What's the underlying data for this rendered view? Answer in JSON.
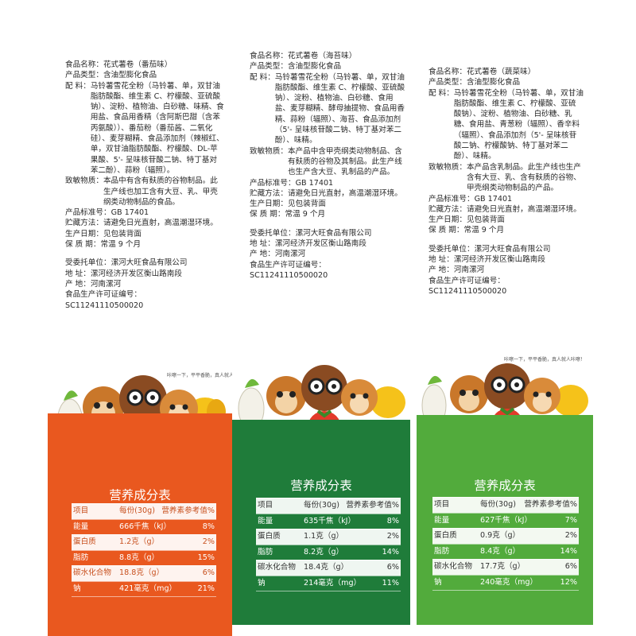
{
  "products": [
    {
      "name_label": "食品名称：",
      "name": "花式薯卷（番茄味）",
      "type_label": "产品类型：",
      "type": "含油型膨化食品",
      "ingredients_label": "配    料：",
      "ingredients": "马铃薯雪花全粉（马铃薯、单，双甘油脂肪酸酯、维生素 C、柠檬酸、亚硫酸钠）、淀粉、植物油、白砂糖、味精、食用盐、食品用香精（含阿斯巴甜（含苯丙氨酸））、番茄粉（番茄酱、二氧化硅）、麦芽糊精、食品添加剂（辣椒红、单，双甘油脂肪酸酯、柠檬酸、DL-苹果酸、5'- 呈味核苷酸二钠、特丁基对苯二酚）、蒜粉（辐照）。",
      "allergen_label": "致敏物质：",
      "allergen": "本品中有含有麸质的谷物制品。此生产线也加工含有大豆、乳、甲壳纲类动物制品的食品。",
      "standard_label": "产品标准号：",
      "standard": "GB 17401",
      "storage_label": "贮藏方法：",
      "storage": "请避免日光直射，高温潮湿环境。",
      "date_label": "生产日期：",
      "date": "见包装背面",
      "shelf_label": "保 质 期：",
      "shelf": "常温 9 个月",
      "entrust_label": "受委托单位：",
      "entrust": "漯河大旺食品有限公司",
      "address_label": "地    址：",
      "address": "漯河经济开发区衡山路南段",
      "origin_label": "产    地：",
      "origin": "河南漯河",
      "license_label": "食品生产许可证编号：",
      "license": "SC11241110500020",
      "slogan": "咔嚓一下，平平香脆，真人就人咔嚓！",
      "nutrition_title": "营养成分表",
      "nutrition_header": [
        "项目",
        "每份(30g)",
        "营养素参考值%"
      ],
      "nutrition_rows": [
        [
          "能量",
          "666千焦（kJ）",
          "8%"
        ],
        [
          "蛋白质",
          "1.2克（g）",
          "2%"
        ],
        [
          "脂肪",
          "8.8克（g）",
          "15%"
        ],
        [
          "碳水化合物",
          "18.8克（g）",
          "6%"
        ],
        [
          "钠",
          "421毫克（mg）",
          "21%"
        ]
      ],
      "theme_color": "#e9581f"
    },
    {
      "name_label": "食品名称：",
      "name": "花式薯卷（海苔味）",
      "type_label": "产品类型：",
      "type": "含油型膨化食品",
      "ingredients_label": "配    料：",
      "ingredients": "马铃薯雪花全粉（马铃薯、单，双甘油脂肪酸酯、维生素 C、柠檬酸、亚硫酸钠）、淀粉、植物油、白砂糖、食用盐、麦芽糊精、酵母抽提物、食品用香精、蒜粉（辐照）、海苔、食品添加剂（5'- 呈味核苷酸二钠、特丁基对苯二酚）、味精。",
      "allergen_label": "致敏物质：",
      "allergen": "本产品中含甲壳纲类动物制品、含有麸质的谷物及其制品。此生产线也生产含大豆、乳制品的产品。",
      "standard_label": "产品标准号：",
      "standard": "GB 17401",
      "storage_label": "贮藏方法：",
      "storage": "请避免日光直射，高温潮湿环境。",
      "date_label": "生产日期：",
      "date": "见包装背面",
      "shelf_label": "保 质 期：",
      "shelf": "常温 9 个月",
      "entrust_label": "受委托单位：",
      "entrust": "漯河大旺食品有限公司",
      "address_label": "地    址：",
      "address": "漯河经济开发区衡山路南段",
      "origin_label": "产    地：",
      "origin": "河南漯河",
      "license_label": "食品生产许可证编号：",
      "license": "SC11241110500020",
      "slogan": "",
      "nutrition_title": "营养成分表",
      "nutrition_header": [
        "项目",
        "每份(30g)",
        "营养素参考值%"
      ],
      "nutrition_rows": [
        [
          "能量",
          "635千焦（kJ）",
          "8%"
        ],
        [
          "蛋白质",
          "1.1克（g）",
          "2%"
        ],
        [
          "脂肪",
          "8.2克（g）",
          "14%"
        ],
        [
          "碳水化合物",
          "18.4克（g）",
          "6%"
        ],
        [
          "钠",
          "214毫克（mg）",
          "11%"
        ]
      ],
      "theme_color": "#1f7c3a"
    },
    {
      "name_label": "食品名称：",
      "name": "花式薯卷（蔬菜味）",
      "type_label": "产品类型：",
      "type": "含油型膨化食品",
      "ingredients_label": "配    料：",
      "ingredients": "马铃薯雪花全粉（马铃薯、单，双甘油脂肪酸酯、维生素 C、柠檬酸、亚硫酸钠）、淀粉、植物油、白砂糖、乳糖、食用盐、青葱粉（辐照）、香辛料（辐照）、食品添加剂（5'- 呈味核苷酸二钠、柠檬酸钠、特丁基对苯二酚）、味精。",
      "allergen_label": "致敏物质：",
      "allergen": "本产品含乳制品。此生产线也生产含有大豆、乳、含有麸质的谷物、甲壳纲类动物制品的产品。",
      "standard_label": "产品标准号：",
      "standard": "GB 17401",
      "storage_label": "贮藏方法：",
      "storage": "请避免日光直射，高温潮湿环境。",
      "date_label": "生产日期：",
      "date": "见包装背面",
      "shelf_label": "保 质 期：",
      "shelf": "常温 9 个月",
      "entrust_label": "受委托单位：",
      "entrust": "漯河大旺食品有限公司",
      "address_label": "地    址：",
      "address": "漯河经济开发区衡山路南段",
      "origin_label": "产    地：",
      "origin": "河南漯河",
      "license_label": "食品生产许可证编号：",
      "license": "SC11241110500020",
      "slogan": "咔嚓一下，平平香脆，真人就人咔嚓！",
      "nutrition_title": "营养成分表",
      "nutrition_header": [
        "项目",
        "每份(30g)",
        "营养素参考值%"
      ],
      "nutrition_rows": [
        [
          "能量",
          "627千焦（kJ）",
          "7%"
        ],
        [
          "蛋白质",
          "0.9克（g）",
          "2%"
        ],
        [
          "脂肪",
          "8.4克（g）",
          "14%"
        ],
        [
          "碳水化合物",
          "17.7克（g）",
          "6%"
        ],
        [
          "钠",
          "240毫克（mg）",
          "12%"
        ]
      ],
      "theme_color": "#52ab3c"
    }
  ]
}
